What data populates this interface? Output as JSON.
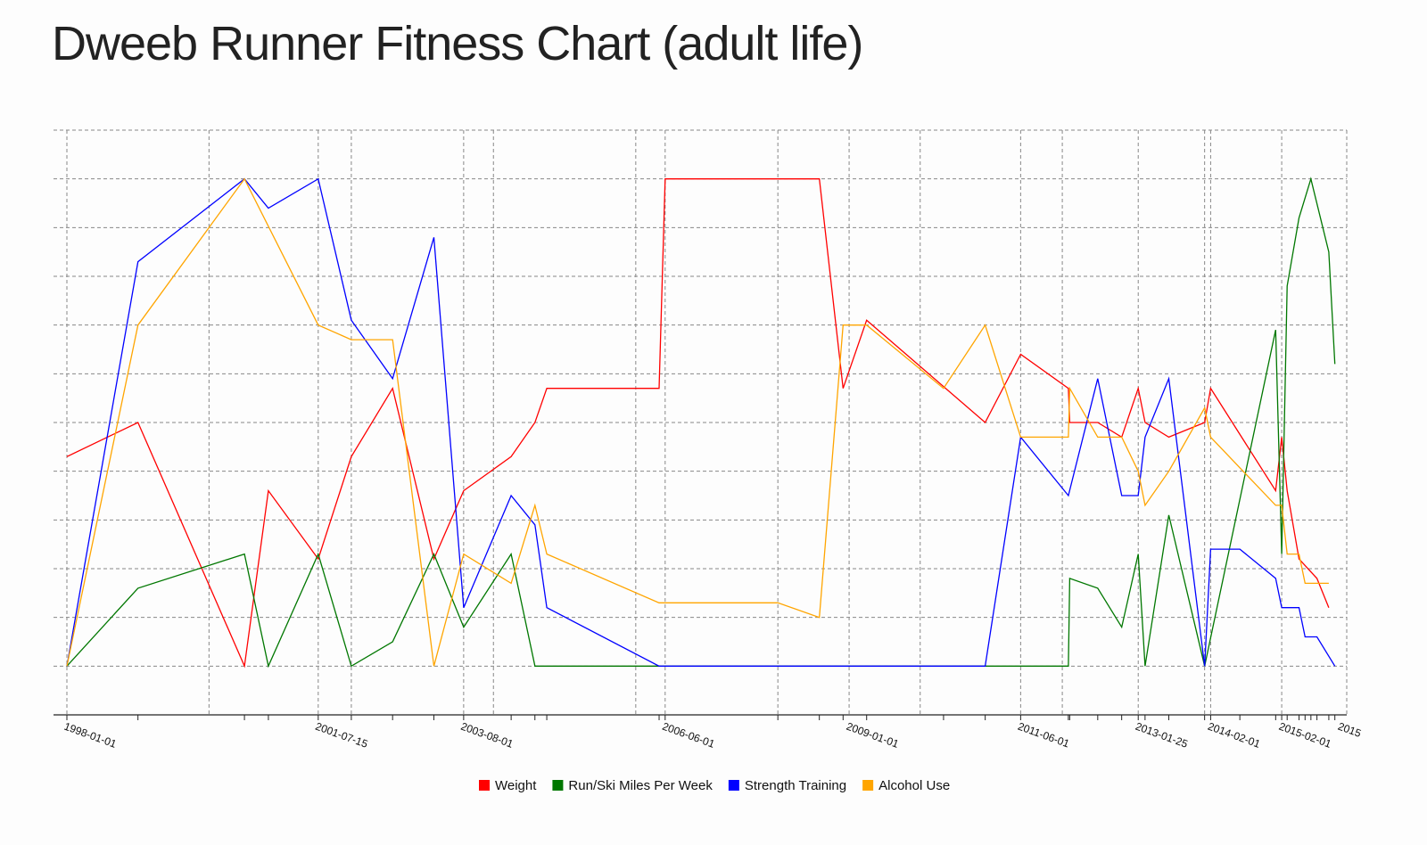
{
  "chart_data": {
    "type": "line",
    "title": "Dweeb Runner Fitness Chart (adult life)",
    "xlabel": "",
    "ylabel": "",
    "x_axis": "date",
    "xlim": [
      "1998-01-01",
      "2016-01-01"
    ],
    "ylim": [
      -1,
      11
    ],
    "grid": true,
    "legend_position": "bottom-center",
    "tick_labels": [
      "1998-01-01",
      "2001-07-15",
      "2003-08-01",
      "2006-06-01",
      "2009-01-01",
      "2011-06-01",
      "2013-01-25",
      "2014-02-01",
      "2015-02-01",
      "2015"
    ],
    "series": [
      {
        "name": "Weight",
        "color": "#ff0000",
        "points": [
          [
            "1998-01-01",
            4.3
          ],
          [
            "1999-01-01",
            5.0
          ],
          [
            "2000-07-01",
            0.0
          ],
          [
            "2000-11-01",
            3.6
          ],
          [
            "2001-07-15",
            2.2
          ],
          [
            "2002-01-01",
            4.3
          ],
          [
            "2002-08-01",
            5.7
          ],
          [
            "2003-03-01",
            2.2
          ],
          [
            "2003-08-01",
            3.6
          ],
          [
            "2004-04-01",
            4.3
          ],
          [
            "2004-08-01",
            5.0
          ],
          [
            "2004-10-01",
            5.7
          ],
          [
            "2006-05-01",
            5.7
          ],
          [
            "2006-06-01",
            10.0
          ],
          [
            "2008-08-01",
            10.0
          ],
          [
            "2008-12-01",
            5.7
          ],
          [
            "2009-04-01",
            7.1
          ],
          [
            "2010-12-01",
            5.0
          ],
          [
            "2011-06-01",
            6.4
          ],
          [
            "2012-02-01",
            5.7
          ],
          [
            "2012-02-08",
            5.0
          ],
          [
            "2012-07-01",
            5.0
          ],
          [
            "2012-11-01",
            4.7
          ],
          [
            "2013-01-25",
            5.7
          ],
          [
            "2013-03-01",
            5.0
          ],
          [
            "2013-07-01",
            4.7
          ],
          [
            "2014-01-01",
            5.0
          ],
          [
            "2014-02-01",
            5.7
          ],
          [
            "2015-01-01",
            3.6
          ],
          [
            "2015-02-01",
            4.7
          ],
          [
            "2015-03-01",
            3.6
          ],
          [
            "2015-05-01",
            2.2
          ],
          [
            "2015-08-01",
            1.8
          ],
          [
            "2015-10-01",
            1.2
          ]
        ]
      },
      {
        "name": "Run/Ski Miles Per Week",
        "color": "#007700",
        "points": [
          [
            "1998-01-01",
            0.0
          ],
          [
            "1999-01-01",
            1.6
          ],
          [
            "2000-07-01",
            2.3
          ],
          [
            "2000-11-01",
            0.0
          ],
          [
            "2001-07-15",
            2.3
          ],
          [
            "2002-01-01",
            0.0
          ],
          [
            "2002-08-01",
            0.5
          ],
          [
            "2003-03-01",
            2.3
          ],
          [
            "2003-08-01",
            0.8
          ],
          [
            "2004-04-01",
            2.3
          ],
          [
            "2004-08-01",
            0.0
          ],
          [
            "2011-06-01",
            0.0
          ],
          [
            "2012-02-01",
            0.0
          ],
          [
            "2012-02-08",
            1.8
          ],
          [
            "2012-07-01",
            1.6
          ],
          [
            "2012-11-01",
            0.8
          ],
          [
            "2013-01-25",
            2.3
          ],
          [
            "2013-03-01",
            0.0
          ],
          [
            "2013-07-01",
            3.1
          ],
          [
            "2014-01-01",
            0.0
          ],
          [
            "2015-01-01",
            6.9
          ],
          [
            "2015-02-01",
            2.3
          ],
          [
            "2015-03-01",
            7.8
          ],
          [
            "2015-05-01",
            9.2
          ],
          [
            "2015-07-01",
            10.0
          ],
          [
            "2015-10-01",
            8.5
          ],
          [
            "2015-11-01",
            6.2
          ]
        ]
      },
      {
        "name": "Strength Training",
        "color": "#0000ff",
        "points": [
          [
            "1998-01-01",
            0.0
          ],
          [
            "1999-01-01",
            8.3
          ],
          [
            "2000-07-01",
            10.0
          ],
          [
            "2000-11-01",
            9.4
          ],
          [
            "2001-07-15",
            10.0
          ],
          [
            "2002-01-01",
            7.1
          ],
          [
            "2002-08-01",
            5.9
          ],
          [
            "2003-03-01",
            8.8
          ],
          [
            "2003-08-01",
            1.2
          ],
          [
            "2004-04-01",
            3.5
          ],
          [
            "2004-08-01",
            2.9
          ],
          [
            "2004-10-01",
            1.2
          ],
          [
            "2006-05-01",
            0.0
          ],
          [
            "2010-12-01",
            0.0
          ],
          [
            "2011-06-01",
            4.7
          ],
          [
            "2012-02-01",
            3.5
          ],
          [
            "2012-07-01",
            5.9
          ],
          [
            "2012-11-01",
            3.5
          ],
          [
            "2013-01-25",
            3.5
          ],
          [
            "2013-03-01",
            4.7
          ],
          [
            "2013-07-01",
            5.9
          ],
          [
            "2014-01-01",
            0.0
          ],
          [
            "2014-02-01",
            2.4
          ],
          [
            "2014-07-01",
            2.4
          ],
          [
            "2015-01-01",
            1.8
          ],
          [
            "2015-02-01",
            1.2
          ],
          [
            "2015-05-01",
            1.2
          ],
          [
            "2015-06-01",
            0.6
          ],
          [
            "2015-08-01",
            0.6
          ],
          [
            "2015-11-01",
            0.0
          ]
        ]
      },
      {
        "name": "Alcohol Use",
        "color": "#ffa500",
        "points": [
          [
            "1998-01-01",
            0.0
          ],
          [
            "1999-01-01",
            7.0
          ],
          [
            "2000-07-01",
            10.0
          ],
          [
            "2001-07-15",
            7.0
          ],
          [
            "2002-01-01",
            6.7
          ],
          [
            "2002-08-01",
            6.7
          ],
          [
            "2003-03-01",
            0.0
          ],
          [
            "2003-08-01",
            2.3
          ],
          [
            "2004-04-01",
            1.7
          ],
          [
            "2004-08-01",
            3.3
          ],
          [
            "2004-10-01",
            2.3
          ],
          [
            "2006-05-01",
            1.3
          ],
          [
            "2008-01-01",
            1.3
          ],
          [
            "2008-08-01",
            1.0
          ],
          [
            "2008-12-01",
            7.0
          ],
          [
            "2009-04-01",
            7.0
          ],
          [
            "2010-05-01",
            5.7
          ],
          [
            "2010-12-01",
            7.0
          ],
          [
            "2011-06-01",
            4.7
          ],
          [
            "2012-02-01",
            4.7
          ],
          [
            "2012-02-08",
            5.7
          ],
          [
            "2012-07-01",
            4.7
          ],
          [
            "2012-11-01",
            4.7
          ],
          [
            "2013-01-25",
            4.0
          ],
          [
            "2013-03-01",
            3.3
          ],
          [
            "2013-07-01",
            4.0
          ],
          [
            "2014-01-01",
            5.3
          ],
          [
            "2014-02-01",
            4.7
          ],
          [
            "2015-01-01",
            3.3
          ],
          [
            "2015-02-01",
            3.3
          ],
          [
            "2015-03-01",
            2.3
          ],
          [
            "2015-05-01",
            2.3
          ],
          [
            "2015-06-01",
            1.7
          ],
          [
            "2015-10-01",
            1.7
          ]
        ]
      }
    ]
  }
}
